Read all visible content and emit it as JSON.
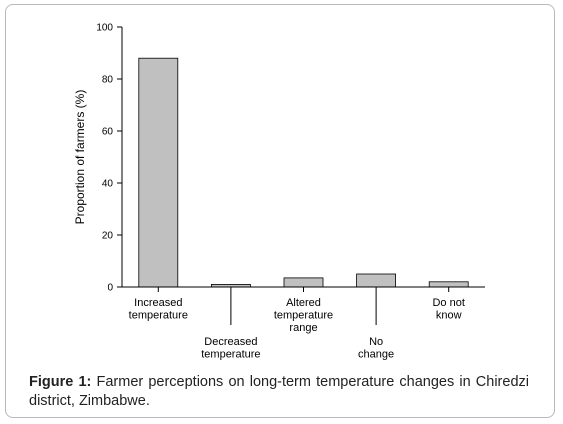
{
  "chart_data": {
    "type": "bar",
    "ylabel": "Proportion of farmers (%)",
    "ylim": [
      0,
      100
    ],
    "yticks": [
      0,
      20,
      40,
      60,
      80,
      100
    ],
    "categories": [
      [
        "Increased",
        "temperature"
      ],
      [
        "Decreased",
        "temperature"
      ],
      [
        "Altered",
        "temperature",
        "range"
      ],
      [
        "No",
        "change"
      ],
      [
        "Do not",
        "know"
      ]
    ],
    "values": [
      88,
      1,
      3.5,
      5,
      2
    ],
    "grid": false,
    "colors": {
      "bar_fill": "#c0c0c0",
      "bar_stroke": "#000000"
    }
  },
  "caption": {
    "label": "Figure 1:",
    "text": "Farmer perceptions on long-term temperature changes in Chiredzi district, Zimbabwe."
  }
}
